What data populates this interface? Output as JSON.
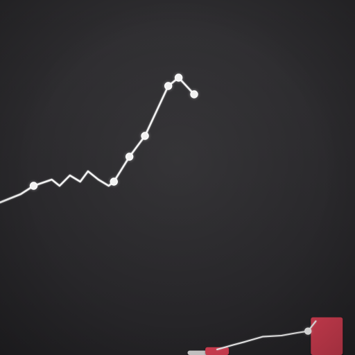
{
  "chart_data": {
    "type": "line",
    "title": "",
    "xlabel": "",
    "ylabel": "",
    "grid": false,
    "legend": "none",
    "xlim": [
      0,
      12
    ],
    "ylim": [
      0,
      100
    ],
    "series": [
      {
        "values": [
          {
            "x": 0.0,
            "y": 20,
            "marker": false
          },
          {
            "x": 0.8,
            "y": 24,
            "marker": false
          },
          {
            "x": 1.3,
            "y": 28,
            "marker": true
          },
          {
            "x": 2.0,
            "y": 31,
            "marker": false
          },
          {
            "x": 2.3,
            "y": 28,
            "marker": false
          },
          {
            "x": 2.7,
            "y": 33,
            "marker": false
          },
          {
            "x": 3.1,
            "y": 30,
            "marker": false
          },
          {
            "x": 3.4,
            "y": 35,
            "marker": false
          },
          {
            "x": 3.8,
            "y": 31,
            "marker": false
          },
          {
            "x": 4.2,
            "y": 28,
            "marker": false
          },
          {
            "x": 4.4,
            "y": 30,
            "marker": true
          },
          {
            "x": 5.0,
            "y": 42,
            "marker": true
          },
          {
            "x": 5.6,
            "y": 52,
            "marker": true
          },
          {
            "x": 6.2,
            "y": 68,
            "marker": false
          },
          {
            "x": 6.5,
            "y": 76,
            "marker": true
          },
          {
            "x": 6.9,
            "y": 80,
            "marker": true
          },
          {
            "x": 7.5,
            "y": 72,
            "marker": true
          }
        ],
        "color": "#f2f2f2"
      }
    ],
    "secondary": {
      "type": "line",
      "xlim": [
        0,
        10
      ],
      "ylim": [
        0,
        10
      ],
      "series": [
        {
          "values": [
            {
              "x": 1.2,
              "y": 1.0
            },
            {
              "x": 2.2,
              "y": 1.8
            },
            {
              "x": 3.0,
              "y": 2.4
            },
            {
              "x": 4.1,
              "y": 3.3
            },
            {
              "x": 5.3,
              "y": 3.5
            },
            {
              "x": 6.3,
              "y": 4.0
            },
            {
              "x": 7.0,
              "y": 4.3
            },
            {
              "x": 7.5,
              "y": 6.1
            }
          ],
          "color": "#f4f4f4",
          "markers": [
            6
          ]
        }
      ],
      "bars": [
        {
          "x": 0.2,
          "value": 0.8,
          "color": "#d2d0d0"
        },
        {
          "x": 1.2,
          "value": 1.4,
          "color": "#d63f53"
        },
        {
          "x": 8.2,
          "value": 6.8,
          "color": "#d63f53"
        }
      ]
    }
  }
}
